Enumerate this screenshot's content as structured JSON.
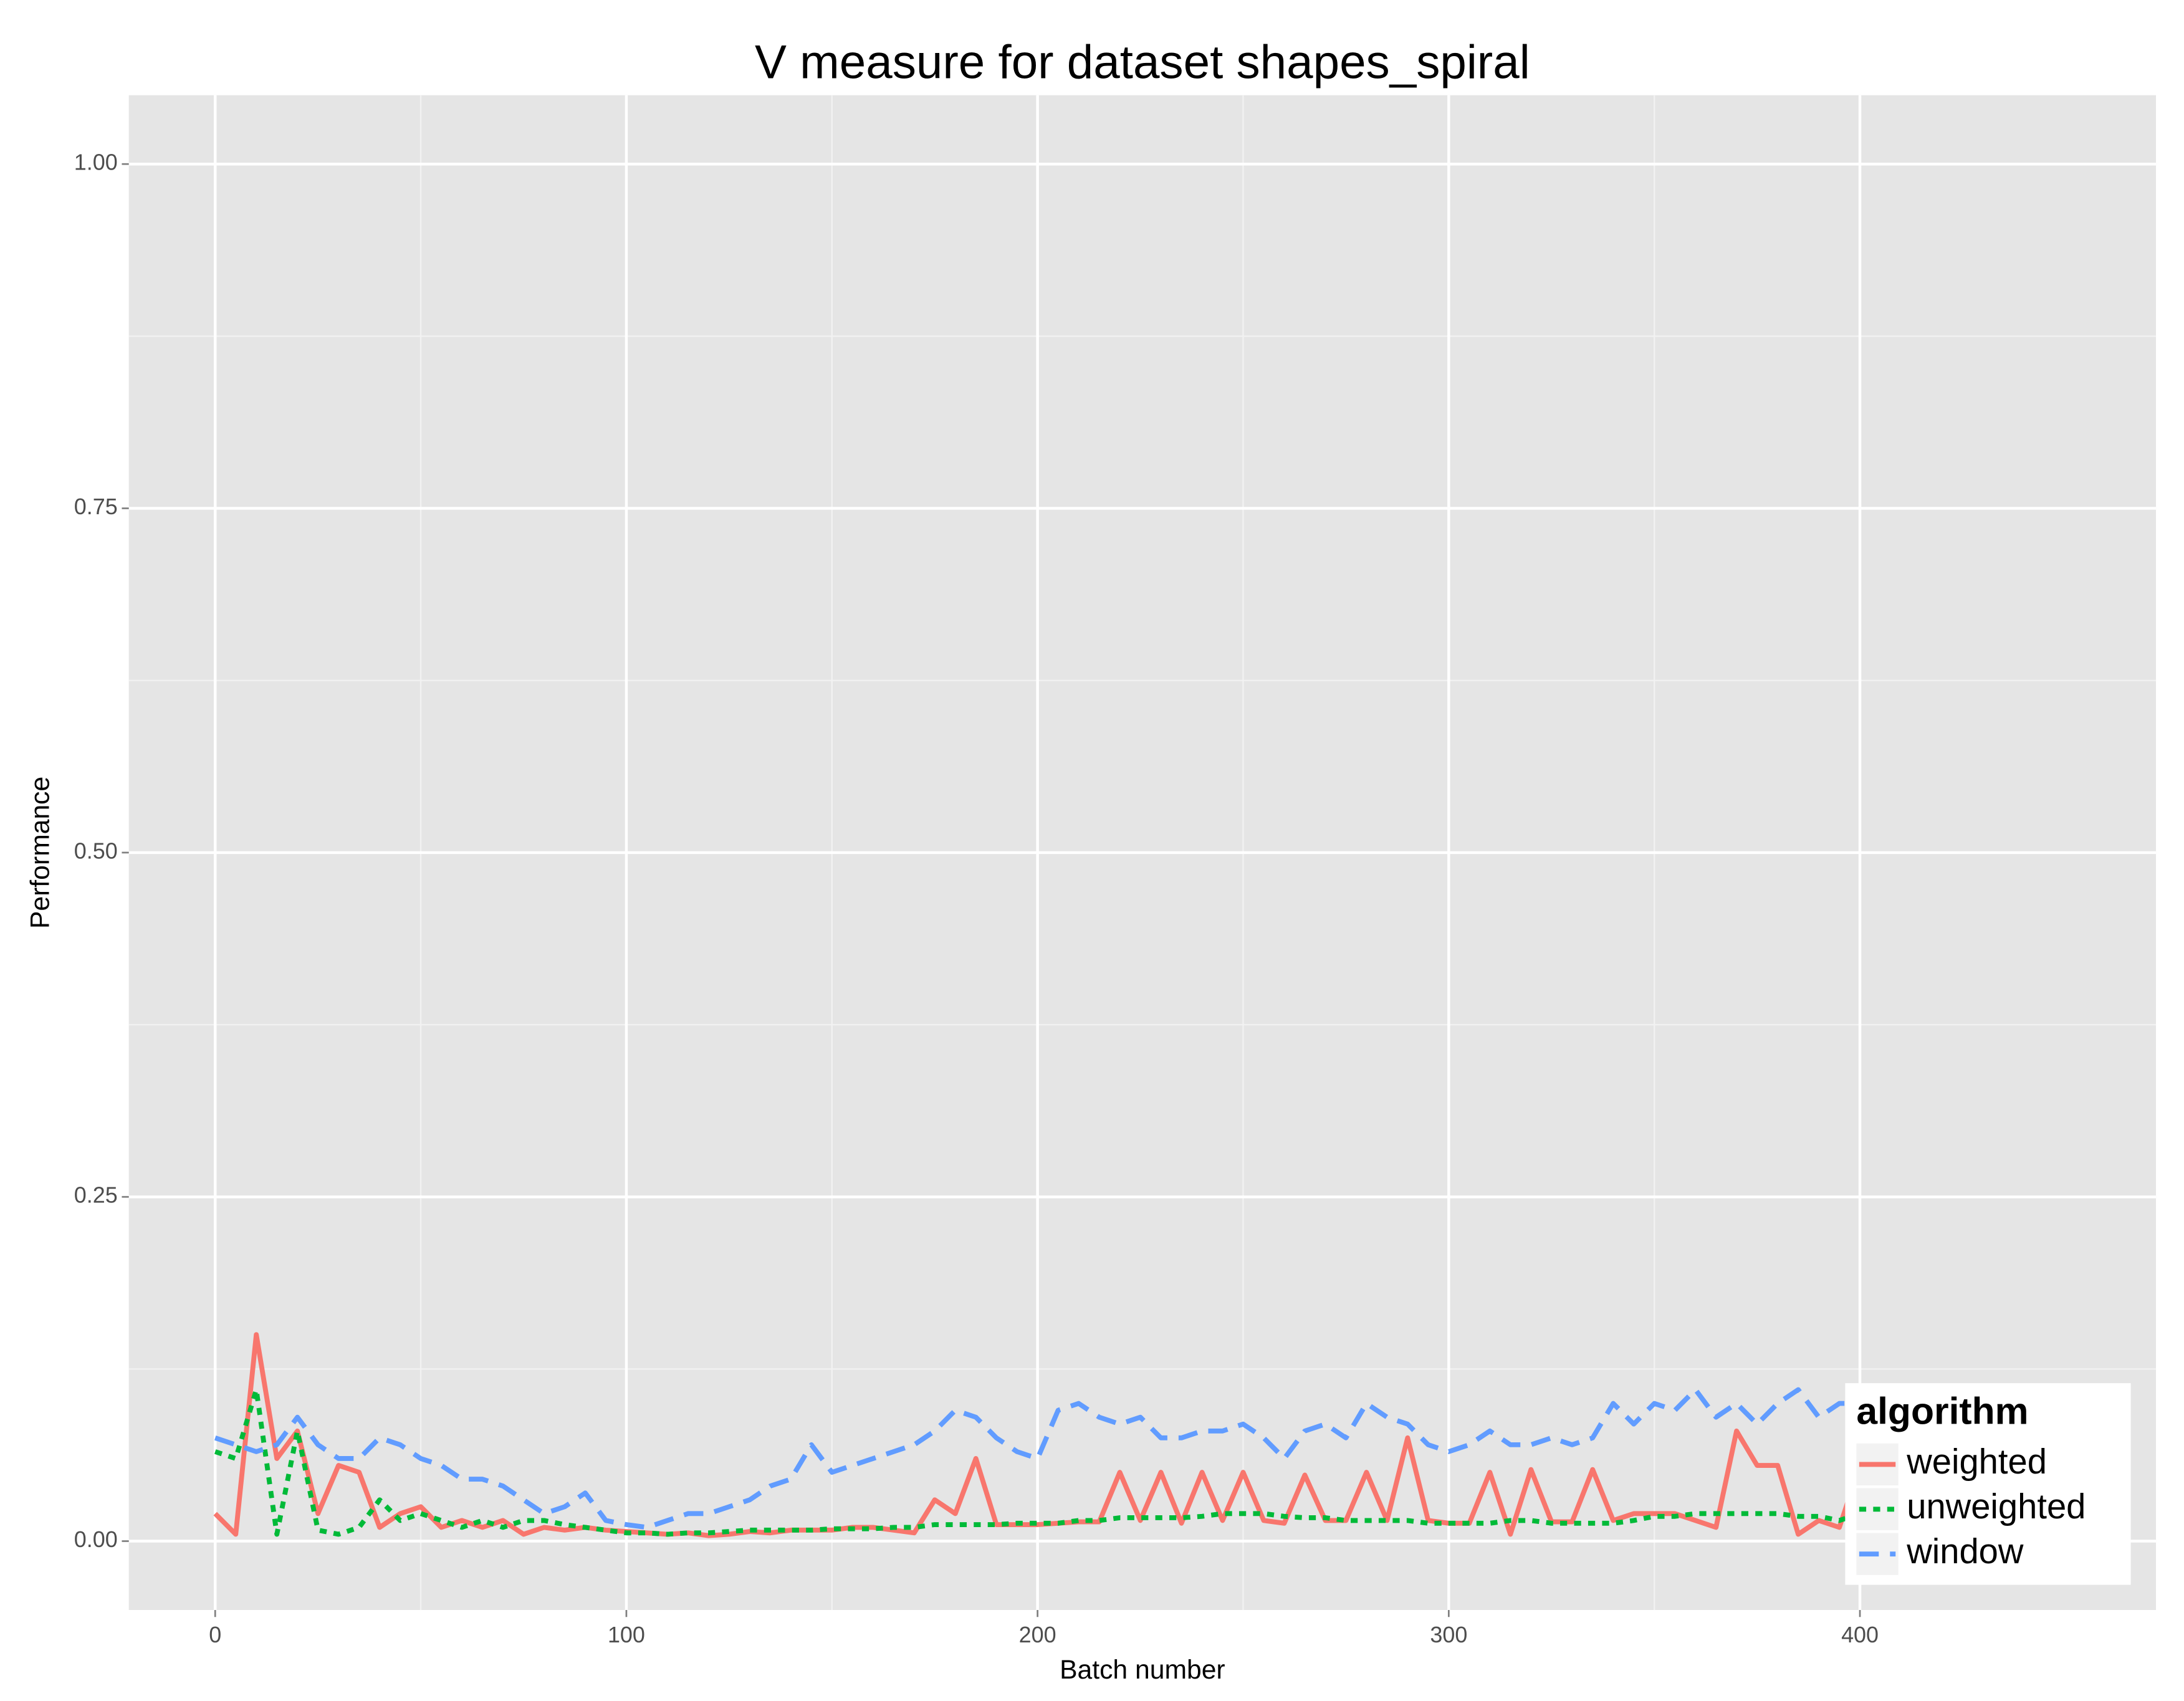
{
  "chart_data": {
    "type": "line",
    "title": "V measure for dataset shapes_spiral",
    "x_label": "Batch number",
    "y_label": "Performance",
    "xlim": [
      -21,
      472
    ],
    "ylim": [
      -0.05,
      1.05
    ],
    "xticks": [
      0,
      100,
      200,
      300,
      400
    ],
    "yticks": [
      {
        "value": 0,
        "label": "0.00"
      },
      {
        "value": 0.25,
        "label": "0.25"
      },
      {
        "value": 0.5,
        "label": "0.50"
      },
      {
        "value": 0.75,
        "label": "0.75"
      },
      {
        "value": 1,
        "label": "1.00"
      }
    ],
    "grid": true,
    "legend_title": "algorithm",
    "legend_position": "bottom-right",
    "x": [
      0,
      5,
      10,
      15,
      20,
      25,
      30,
      35,
      40,
      45,
      50,
      55,
      60,
      65,
      70,
      75,
      80,
      85,
      90,
      95,
      100,
      105,
      110,
      115,
      120,
      125,
      130,
      135,
      140,
      145,
      150,
      155,
      160,
      165,
      170,
      175,
      180,
      185,
      190,
      195,
      200,
      205,
      210,
      215,
      220,
      225,
      230,
      235,
      240,
      245,
      250,
      255,
      260,
      265,
      270,
      275,
      280,
      285,
      290,
      295,
      300,
      305,
      310,
      315,
      320,
      325,
      330,
      335,
      340,
      345,
      350,
      355,
      360,
      365,
      370,
      375,
      380,
      385,
      390,
      395,
      400
    ],
    "series": [
      {
        "name": "weighted",
        "color": "#f8766d",
        "linestyle": "solid",
        "values": [
          0.02,
          0.005,
          0.15,
          0.06,
          0.08,
          0.02,
          0.055,
          0.05,
          0.01,
          0.02,
          0.025,
          0.01,
          0.015,
          0.01,
          0.015,
          0.005,
          0.01,
          0.008,
          0.01,
          0.008,
          0.007,
          0.006,
          0.005,
          0.006,
          0.004,
          0.005,
          0.007,
          0.006,
          0.008,
          0.008,
          0.008,
          0.01,
          0.01,
          0.008,
          0.006,
          0.03,
          0.02,
          0.06,
          0.012,
          0.012,
          0.012,
          0.013,
          0.014,
          0.014,
          0.05,
          0.015,
          0.05,
          0.013,
          0.05,
          0.015,
          0.05,
          0.015,
          0.013,
          0.048,
          0.015,
          0.015,
          0.05,
          0.015,
          0.075,
          0.015,
          0.013,
          0.013,
          0.05,
          0.005,
          0.052,
          0.014,
          0.014,
          0.052,
          0.015,
          0.02,
          0.02,
          0.02,
          0.015,
          0.01,
          0.08,
          0.055,
          0.055,
          0.005,
          0.015,
          0.01,
          0.055
        ]
      },
      {
        "name": "unweighted",
        "color": "#00ba38",
        "linestyle": "dotted",
        "values": [
          0.065,
          0.06,
          0.11,
          0.005,
          0.08,
          0.008,
          0.005,
          0.01,
          0.03,
          0.015,
          0.02,
          0.015,
          0.01,
          0.015,
          0.01,
          0.015,
          0.015,
          0.012,
          0.01,
          0.008,
          0.006,
          0.006,
          0.005,
          0.006,
          0.006,
          0.007,
          0.008,
          0.008,
          0.008,
          0.008,
          0.009,
          0.009,
          0.009,
          0.01,
          0.01,
          0.012,
          0.012,
          0.012,
          0.012,
          0.013,
          0.013,
          0.013,
          0.015,
          0.015,
          0.017,
          0.017,
          0.017,
          0.017,
          0.018,
          0.02,
          0.02,
          0.02,
          0.018,
          0.017,
          0.017,
          0.015,
          0.015,
          0.015,
          0.015,
          0.013,
          0.013,
          0.013,
          0.013,
          0.015,
          0.015,
          0.013,
          0.013,
          0.013,
          0.013,
          0.015,
          0.018,
          0.018,
          0.02,
          0.02,
          0.02,
          0.02,
          0.02,
          0.018,
          0.018,
          0.015,
          0.02
        ]
      },
      {
        "name": "window",
        "color": "#619cff",
        "linestyle": "dashed",
        "values": [
          0.075,
          0.07,
          0.065,
          0.07,
          0.09,
          0.07,
          0.06,
          0.06,
          0.075,
          0.07,
          0.06,
          0.055,
          0.045,
          0.045,
          0.04,
          0.03,
          0.02,
          0.025,
          0.035,
          0.015,
          0.012,
          0.01,
          0.015,
          0.02,
          0.02,
          0.025,
          0.03,
          0.04,
          0.045,
          0.07,
          0.05,
          0.055,
          0.06,
          0.065,
          0.07,
          0.08,
          0.095,
          0.09,
          0.075,
          0.065,
          0.06,
          0.095,
          0.1,
          0.09,
          0.085,
          0.09,
          0.075,
          0.075,
          0.08,
          0.08,
          0.085,
          0.075,
          0.06,
          0.08,
          0.085,
          0.075,
          0.1,
          0.09,
          0.085,
          0.07,
          0.065,
          0.07,
          0.08,
          0.07,
          0.07,
          0.075,
          0.07,
          0.075,
          0.1,
          0.085,
          0.1,
          0.095,
          0.11,
          0.09,
          0.1,
          0.085,
          0.1,
          0.11,
          0.09,
          0.1,
          0.1
        ]
      }
    ]
  }
}
